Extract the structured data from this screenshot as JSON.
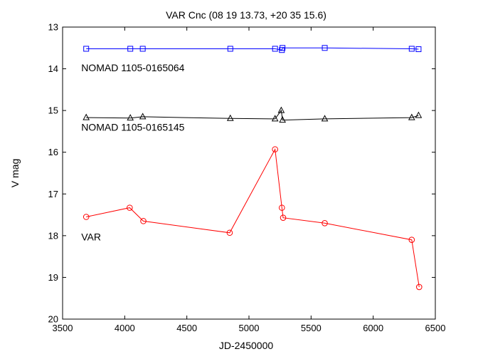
{
  "chart_data": {
    "type": "line",
    "title": "VAR Cnc (08 19 13.73, +20 35 15.6)",
    "xlabel": "JD-2450000",
    "ylabel": "V mag",
    "xlim": [
      3500,
      6500
    ],
    "ylim": [
      13,
      20
    ],
    "y_inverted": true,
    "grid": false,
    "xticks": [
      3500,
      4000,
      4500,
      5000,
      5500,
      6000,
      6500
    ],
    "yticks": [
      13,
      14,
      15,
      16,
      17,
      18,
      19,
      20
    ],
    "series": [
      {
        "name": "NOMAD 1105-0165064",
        "color": "#0000ff",
        "marker": "square",
        "x": [
          3690,
          4045,
          4145,
          4850,
          5210,
          5265,
          5270,
          5610,
          6310,
          6365
        ],
        "y": [
          13.52,
          13.52,
          13.52,
          13.52,
          13.52,
          13.55,
          13.5,
          13.5,
          13.52,
          13.53
        ]
      },
      {
        "name": "NOMAD 1105-0165145",
        "color": "#000000",
        "marker": "triangle",
        "x": [
          3690,
          4045,
          4145,
          4850,
          5210,
          5260,
          5270,
          5610,
          6310,
          6365
        ],
        "y": [
          15.17,
          15.18,
          15.15,
          15.19,
          15.2,
          15.0,
          15.23,
          15.2,
          15.17,
          15.12
        ]
      },
      {
        "name": "VAR",
        "color": "#ff0000",
        "marker": "circle",
        "x": [
          3690,
          4040,
          4150,
          4845,
          5210,
          5265,
          5275,
          5610,
          6310,
          6370
        ],
        "y": [
          17.55,
          17.33,
          17.65,
          17.93,
          15.93,
          17.33,
          17.57,
          17.7,
          18.1,
          19.23
        ]
      }
    ],
    "annotations": [
      {
        "text": "NOMAD 1105-0165064",
        "x": 3650,
        "y": 13.97
      },
      {
        "text": "NOMAD 1105-0165145",
        "x": 3650,
        "y": 15.4
      },
      {
        "text": "VAR",
        "x": 3650,
        "y": 18.03
      }
    ]
  }
}
